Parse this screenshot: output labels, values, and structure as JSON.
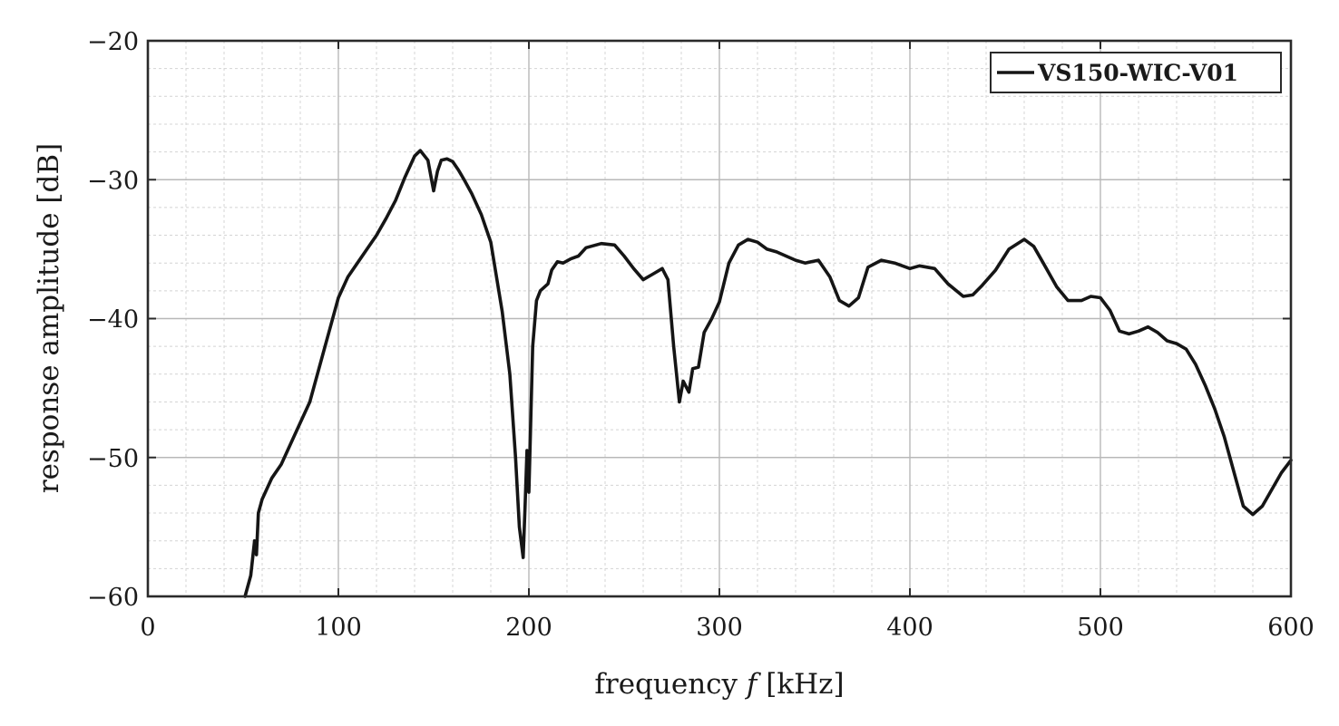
{
  "chart_data": {
    "type": "line",
    "title": "",
    "xlabel_main": "frequency ",
    "xlabel_var": "f",
    "xlabel_unit": " [kHz]",
    "ylabel": "response amplitude [dB]",
    "xlim": [
      0,
      600
    ],
    "ylim": [
      -60,
      -20
    ],
    "xticks": [
      0,
      100,
      200,
      300,
      400,
      500,
      600
    ],
    "yticks": [
      -60,
      -50,
      -40,
      -30,
      -20
    ],
    "xtick_labels": [
      "0",
      "100",
      "200",
      "300",
      "400",
      "500",
      "600"
    ],
    "ytick_labels": [
      "−60",
      "−50",
      "−40",
      "−30",
      "−20"
    ],
    "x_minor_step": 20,
    "y_minor_step": 2,
    "grid": true,
    "legend": {
      "position": "top-right",
      "entries": [
        "VS150-WIC-V01"
      ]
    },
    "series": [
      {
        "name": "VS150-WIC-V01",
        "color": "#151515",
        "x": [
          51,
          54,
          56,
          57,
          58,
          60,
          65,
          70,
          75,
          80,
          85,
          90,
          95,
          100,
          105,
          110,
          115,
          120,
          125,
          130,
          135,
          140,
          143,
          147,
          150,
          152,
          154,
          157,
          160,
          163,
          166,
          170,
          175,
          180,
          183,
          186,
          190,
          193,
          195,
          197,
          198,
          199,
          200,
          202,
          204,
          206,
          210,
          212,
          215,
          218,
          222,
          226,
          230,
          238,
          245,
          250,
          255,
          260,
          265,
          270,
          273,
          276,
          279,
          281,
          284,
          286,
          289,
          292,
          296,
          300,
          305,
          310,
          315,
          320,
          325,
          330,
          335,
          340,
          345,
          352,
          358,
          363,
          368,
          373,
          378,
          385,
          392,
          400,
          405,
          413,
          420,
          428,
          433,
          438,
          445,
          452,
          460,
          465,
          470,
          477,
          483,
          490,
          495,
          500,
          505,
          510,
          515,
          520,
          525,
          530,
          535,
          540,
          545,
          550,
          555,
          560,
          565,
          570,
          575,
          580,
          585,
          590,
          595,
          600
        ],
        "y": [
          -60,
          -58.5,
          -56,
          -57,
          -54,
          -53,
          -51.5,
          -50.5,
          -49,
          -47.5,
          -46,
          -43.5,
          -41,
          -38.5,
          -37,
          -36,
          -35,
          -34,
          -32.8,
          -31.5,
          -29.8,
          -28.3,
          -27.9,
          -28.6,
          -30.8,
          -29.4,
          -28.6,
          -28.5,
          -28.7,
          -29.3,
          -30,
          -31,
          -32.5,
          -34.5,
          -37,
          -39.5,
          -44,
          -50,
          -55,
          -57.2,
          -53.5,
          -49.5,
          -52.5,
          -42,
          -38.7,
          -38,
          -37.5,
          -36.5,
          -35.9,
          -36,
          -35.7,
          -35.5,
          -34.9,
          -34.6,
          -34.7,
          -35.5,
          -36.4,
          -37.2,
          -36.8,
          -36.4,
          -37.2,
          -42,
          -46,
          -44.5,
          -45.3,
          -43.6,
          -43.5,
          -41,
          -40,
          -38.8,
          -36,
          -34.7,
          -34.3,
          -34.5,
          -35,
          -35.2,
          -35.5,
          -35.8,
          -36,
          -35.8,
          -37,
          -38.7,
          -39.1,
          -38.5,
          -36.3,
          -35.8,
          -36,
          -36.4,
          -36.2,
          -36.4,
          -37.5,
          -38.4,
          -38.3,
          -37.6,
          -36.5,
          -35,
          -34.3,
          -34.8,
          -36,
          -37.7,
          -38.7,
          -38.7,
          -38.4,
          -38.5,
          -39.4,
          -40.9,
          -41.1,
          -40.9,
          -40.6,
          -41,
          -41.6,
          -41.8,
          -42.2,
          -43.3,
          -44.8,
          -46.5,
          -48.5,
          -51,
          -53.5,
          -54.1,
          -53.5,
          -52.3,
          -51.1,
          -50.2
        ]
      }
    ]
  }
}
